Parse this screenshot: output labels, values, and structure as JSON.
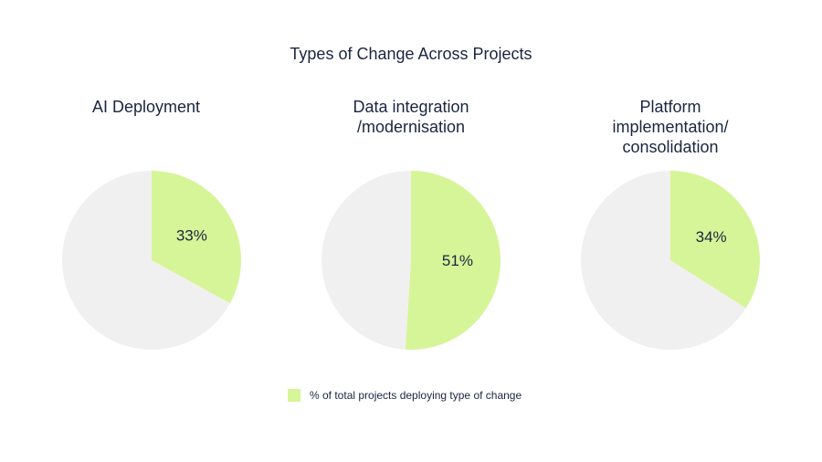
{
  "colors": {
    "value": "#d6f598",
    "remainder": "#f0f0f0",
    "text": "#1b2540"
  },
  "chart_data": [
    {
      "type": "pie",
      "title": "AI Deployment",
      "slices": [
        {
          "name": "% of total projects deploying type of change",
          "value": 33,
          "label": "33%"
        },
        {
          "name": "",
          "value": 67
        }
      ]
    },
    {
      "type": "pie",
      "title": "Data integration /modernisation",
      "title_lines": [
        "Data integration",
        "/modernisation"
      ],
      "slices": [
        {
          "name": "% of total projects deploying type of change",
          "value": 51,
          "label": "51%"
        },
        {
          "name": "",
          "value": 49
        }
      ]
    },
    {
      "type": "pie",
      "title": "Platform implementation/ consolidation",
      "title_lines": [
        "Platform",
        "implementation/",
        "consolidation"
      ],
      "slices": [
        {
          "name": "% of total projects deploying type of change",
          "value": 34,
          "label": "34%"
        },
        {
          "name": "",
          "value": 66
        }
      ]
    }
  ],
  "figure": {
    "title": "Types of Change Across Projects",
    "legend": {
      "placement": "bottom-center",
      "label": "% of total projects deploying type of change"
    }
  }
}
